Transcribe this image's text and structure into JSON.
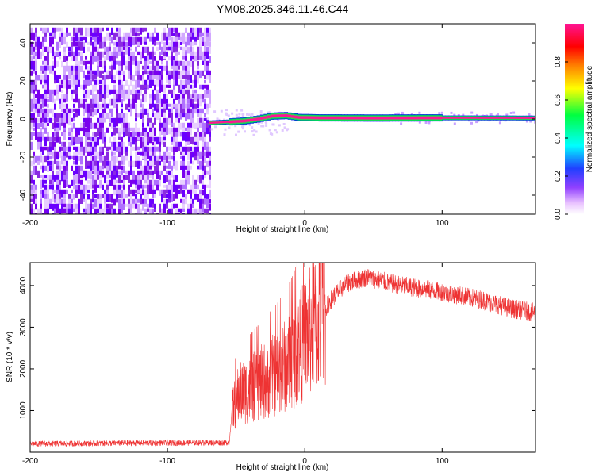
{
  "title": "YM08.2025.346.11.46.C44",
  "chart_data": [
    {
      "type": "heatmap",
      "xlabel": "Height of straight line (km)",
      "ylabel": "Frequency (Hz)",
      "xlim": [
        -200,
        168
      ],
      "ylim": [
        -50,
        50
      ],
      "xticks": [
        -200,
        -100,
        0,
        100
      ],
      "yticks": [
        -40,
        -20,
        0,
        20,
        40
      ],
      "colorbar": {
        "label": "Normalized spectral amplitude",
        "range": [
          0,
          1
        ],
        "ticks": [
          "0.0",
          "0.2",
          "0.4",
          "0.6",
          "0.8"
        ],
        "tick_values": [
          0,
          0.2,
          0.4,
          0.6,
          0.8
        ],
        "colors": [
          "#ffffff",
          "#e8c0ff",
          "#9040ff",
          "#2040ff",
          "#00ffff",
          "#00ff40",
          "#ffff00",
          "#ff8000",
          "#ff0000",
          "#ff1493"
        ]
      },
      "regions": [
        {
          "description": "broadband noise",
          "x_range": [
            -200,
            -70
          ],
          "freq_range": [
            -50,
            48
          ],
          "amplitude": 0.08
        },
        {
          "description": "carrier line",
          "x_range": [
            -70,
            168
          ],
          "freq": 0.5,
          "amplitude": 1.0
        }
      ],
      "carrier_trace": [
        {
          "x": -70,
          "freq": -2
        },
        {
          "x": -55,
          "freq": -1.5
        },
        {
          "x": -45,
          "freq": -1
        },
        {
          "x": -35,
          "freq": 0
        },
        {
          "x": -25,
          "freq": 1.5
        },
        {
          "x": -15,
          "freq": 1.8
        },
        {
          "x": -5,
          "freq": 0.8
        },
        {
          "x": 10,
          "freq": 0.6
        },
        {
          "x": 50,
          "freq": 0.5
        },
        {
          "x": 100,
          "freq": 0.6
        },
        {
          "x": 168,
          "freq": 0.5
        }
      ]
    },
    {
      "type": "line",
      "xlabel": "Height of straight line (km)",
      "ylabel": "SNR (10 * v/v)",
      "xlim": [
        -200,
        168
      ],
      "ylim": [
        0,
        4550
      ],
      "xticks": [
        -200,
        -100,
        0,
        100
      ],
      "yticks": [
        1000,
        2000,
        3000,
        4000
      ],
      "series": [
        {
          "color": "#ee3333",
          "envelope": [
            {
              "x": -200,
              "y": 200
            },
            {
              "x": -120,
              "y": 220
            },
            {
              "x": -55,
              "y": 230
            },
            {
              "x": -53,
              "y": 1000
            },
            {
              "x": -48,
              "y": 1400
            },
            {
              "x": -40,
              "y": 1500
            },
            {
              "x": -30,
              "y": 1700
            },
            {
              "x": -20,
              "y": 1900
            },
            {
              "x": -10,
              "y": 2200
            },
            {
              "x": 0,
              "y": 2700
            },
            {
              "x": 10,
              "y": 3200
            },
            {
              "x": 20,
              "y": 3700
            },
            {
              "x": 30,
              "y": 4050
            },
            {
              "x": 45,
              "y": 4200
            },
            {
              "x": 70,
              "y": 4000
            },
            {
              "x": 100,
              "y": 3850
            },
            {
              "x": 130,
              "y": 3650
            },
            {
              "x": 150,
              "y": 3450
            },
            {
              "x": 168,
              "y": 3350
            }
          ]
        }
      ]
    }
  ]
}
